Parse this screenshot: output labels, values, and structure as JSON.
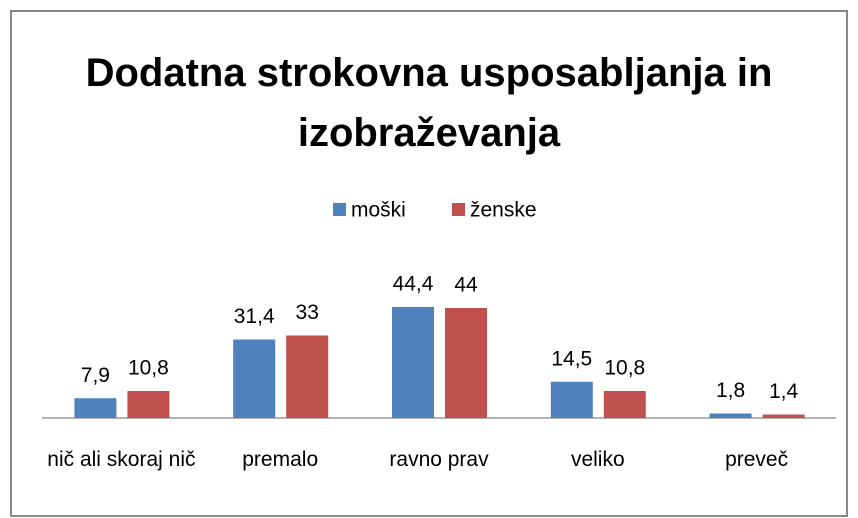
{
  "chart_data": {
    "type": "bar",
    "title": "Dodatna strokovna usposabljanja in izobraževanja",
    "categories": [
      "nič ali skoraj nič",
      "premalo",
      "ravno prav",
      "veliko",
      "preveč"
    ],
    "series": [
      {
        "name": "moški",
        "color": "#4f81bd",
        "values": [
          7.9,
          31.4,
          44.4,
          14.5,
          1.8
        ],
        "value_labels": [
          "7,9",
          "31,4",
          "44,4",
          "14,5",
          "1,8"
        ]
      },
      {
        "name": "ženske",
        "color": "#c0504d",
        "values": [
          10.8,
          33,
          44,
          10.8,
          1.4
        ],
        "value_labels": [
          "10,8",
          "33",
          "44",
          "10,8",
          "1,4"
        ]
      }
    ],
    "legend": "top"
  }
}
